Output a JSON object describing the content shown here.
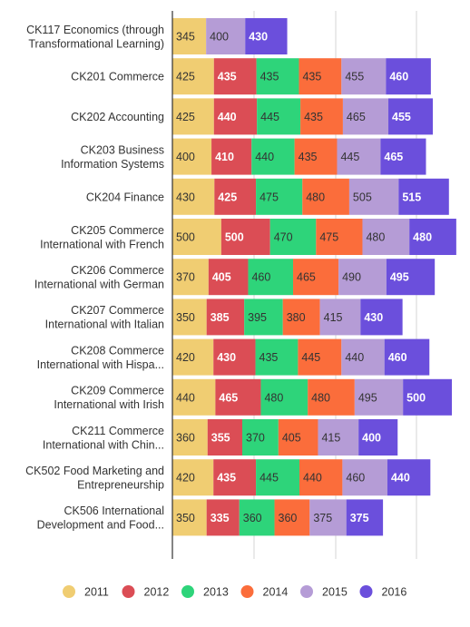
{
  "chart_data": {
    "type": "bar",
    "orientation": "horizontal",
    "stacked": true,
    "grid": true,
    "legend_position": "bottom",
    "title": "",
    "xlabel": "",
    "ylabel": "",
    "categories": [
      [
        "CK117 Economics (through",
        "Transformational Learning)"
      ],
      [
        "CK201 Commerce"
      ],
      [
        "CK202 Accounting"
      ],
      [
        "CK203 Business",
        "Information Systems"
      ],
      [
        "CK204 Finance"
      ],
      [
        "CK205 Commerce",
        "International with French"
      ],
      [
        "CK206 Commerce",
        "International with German"
      ],
      [
        "CK207 Commerce",
        "International with Italian"
      ],
      [
        "CK208 Commerce",
        "International with Hispa..."
      ],
      [
        "CK209 Commerce",
        "International with Irish"
      ],
      [
        "CK211 Commerce",
        "International with Chin..."
      ],
      [
        "CK502 Food Marketing and",
        "Entrepreneurship"
      ],
      [
        "CK506 International",
        "Development and Food..."
      ]
    ],
    "series": [
      {
        "name": "2011",
        "color": "#f0cd72",
        "label_color": "#333333",
        "values": [
          345,
          425,
          425,
          400,
          430,
          500,
          370,
          350,
          420,
          440,
          360,
          420,
          350
        ]
      },
      {
        "name": "2012",
        "color": "#db4d55",
        "label_color": "#ffffff",
        "values": [
          null,
          435,
          440,
          410,
          425,
          500,
          405,
          385,
          430,
          465,
          355,
          435,
          335
        ]
      },
      {
        "name": "2013",
        "color": "#2ed47a",
        "label_color": "#333333",
        "values": [
          null,
          435,
          445,
          440,
          475,
          470,
          460,
          395,
          435,
          480,
          370,
          445,
          360
        ]
      },
      {
        "name": "2014",
        "color": "#fb6d3b",
        "label_color": "#333333",
        "values": [
          null,
          435,
          435,
          435,
          480,
          475,
          465,
          380,
          445,
          480,
          405,
          440,
          360
        ]
      },
      {
        "name": "2015",
        "color": "#b59cd6",
        "label_color": "#333333",
        "values": [
          400,
          455,
          465,
          445,
          505,
          480,
          490,
          415,
          440,
          495,
          415,
          460,
          375
        ]
      },
      {
        "name": "2016",
        "color": "#6b4fdc",
        "label_color": "#ffffff",
        "values": [
          430,
          460,
          455,
          465,
          515,
          480,
          495,
          430,
          460,
          500,
          400,
          440,
          375
        ]
      }
    ]
  }
}
